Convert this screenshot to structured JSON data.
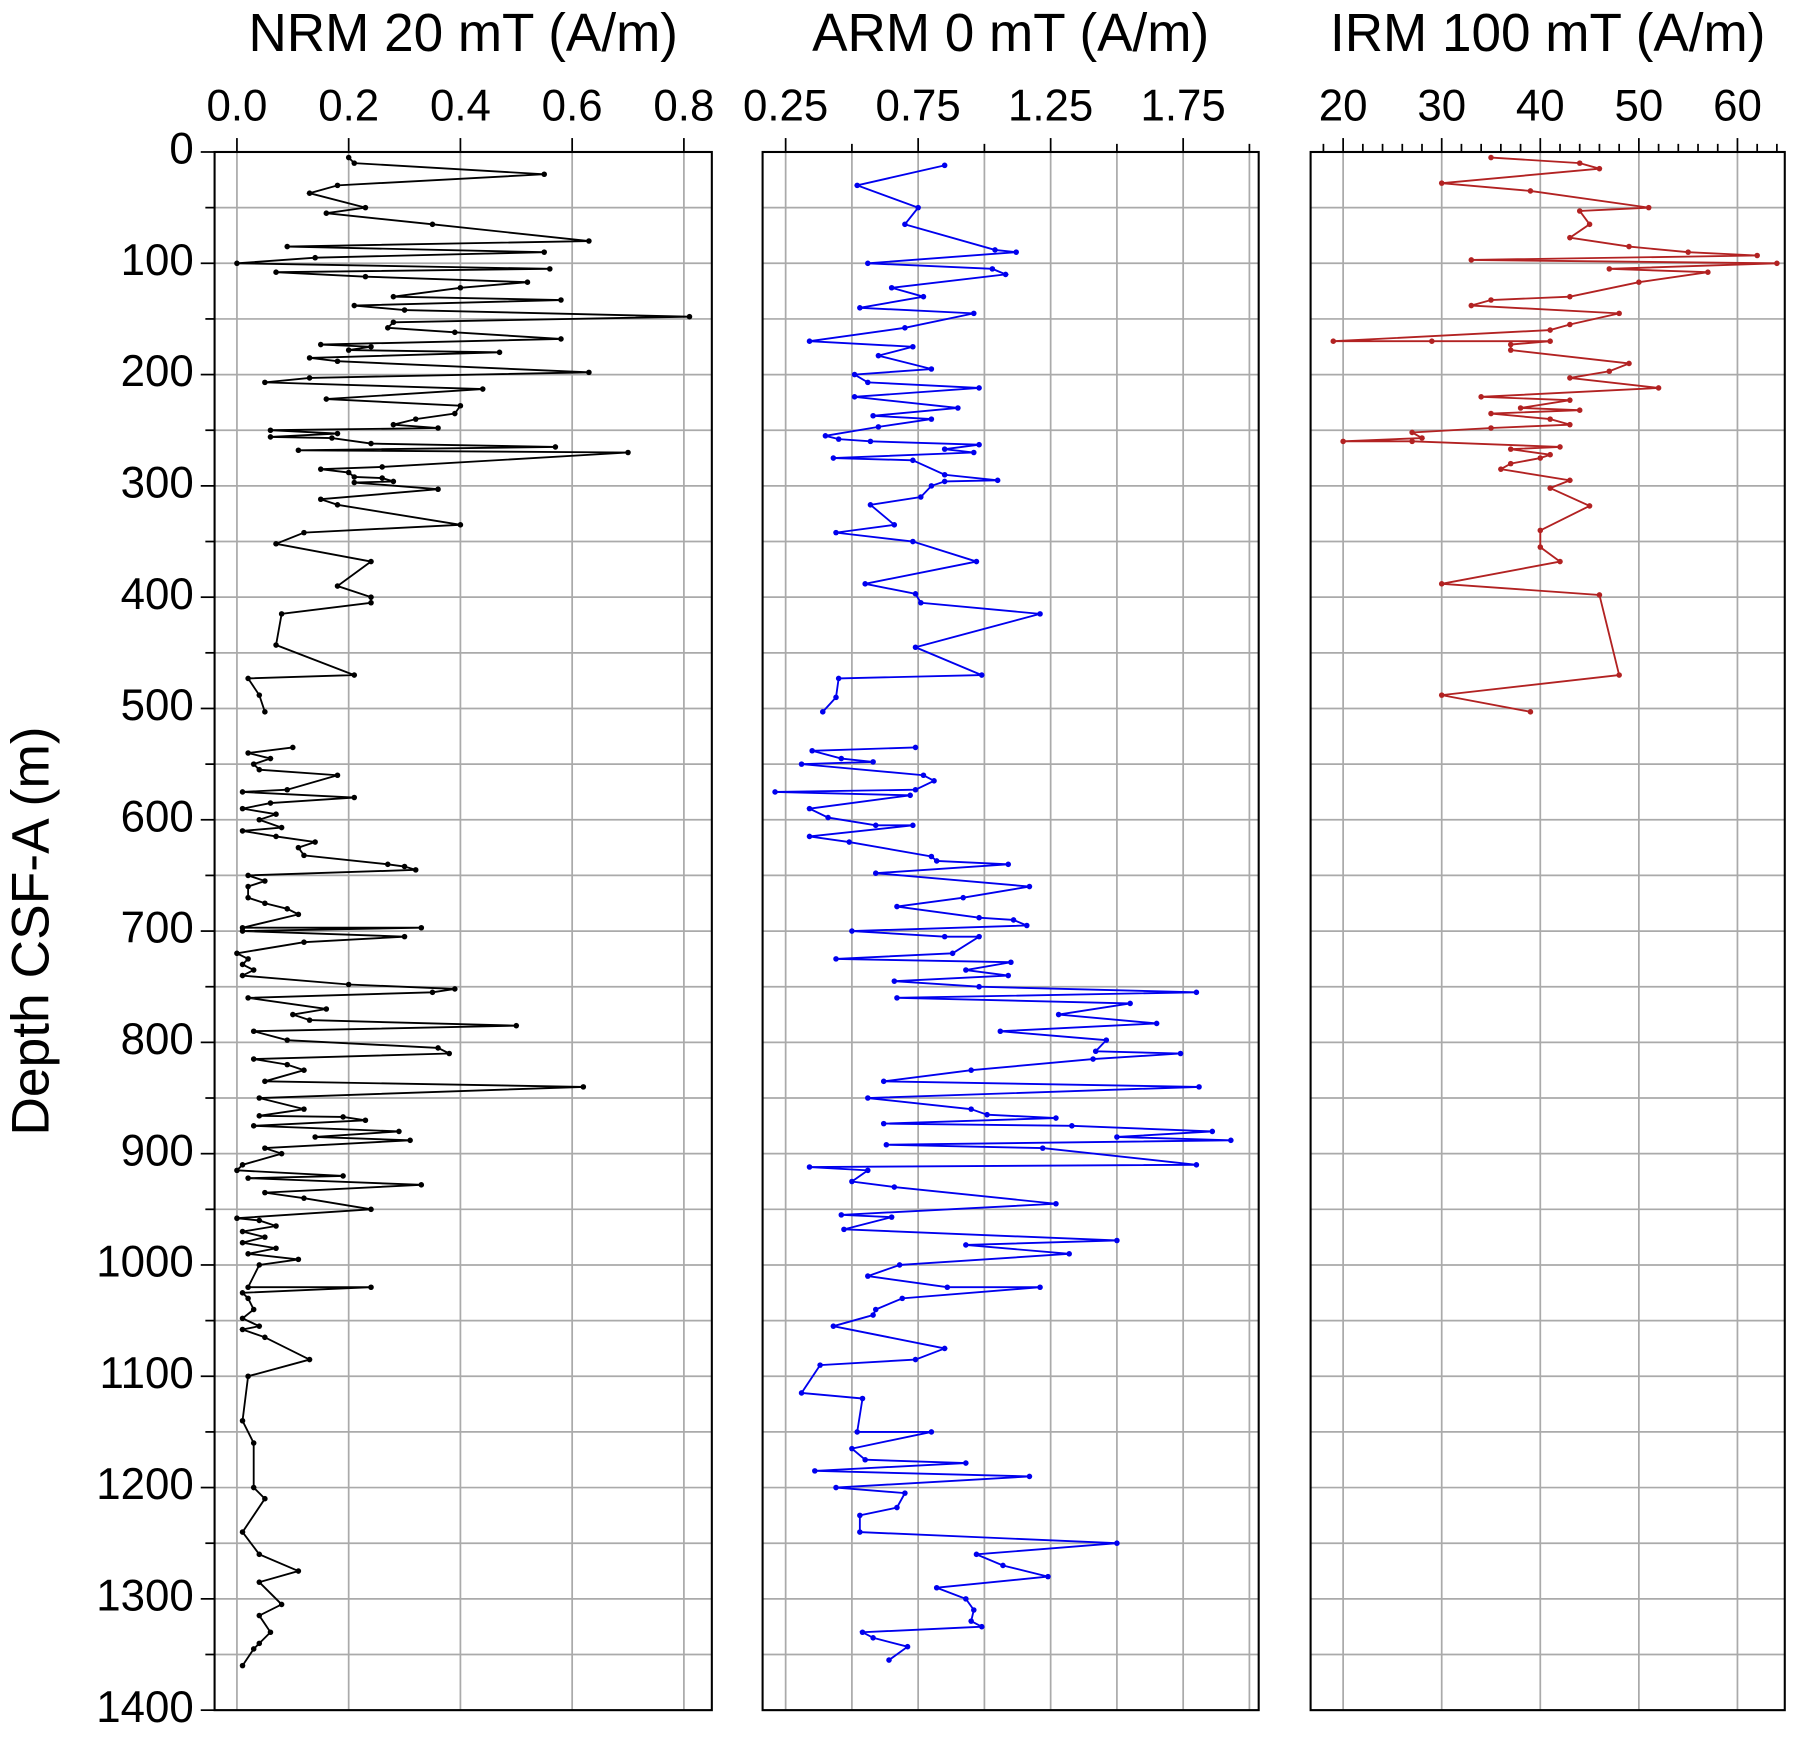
{
  "chart_data": [
    {
      "type": "line",
      "title": "NRM 20 mT (A/m)",
      "ylabel": "Depth CSF-A (m)",
      "color": "#000000",
      "xlim": [
        -0.04,
        0.85
      ],
      "xticks": [
        {
          "value": 0,
          "label": "0.0"
        },
        0.2,
        0.4,
        0.6,
        0.8
      ],
      "ylim": [
        0,
        1400
      ],
      "yticks": [
        0,
        100,
        200,
        300,
        400,
        500,
        600,
        700,
        800,
        900,
        1000,
        1100,
        1200,
        1300,
        1400
      ],
      "yminor": [
        50,
        150,
        250,
        350,
        450,
        550,
        650,
        750,
        850,
        950,
        1050,
        1150,
        1250,
        1350
      ],
      "grid": true,
      "values": [
        0.2,
        0.21,
        0.55,
        0.18,
        0.13,
        0.23,
        0.16,
        0.35,
        0.63,
        0.09,
        0.55,
        0.14,
        0.0,
        0.56,
        0.07,
        0.23,
        0.52,
        0.4,
        0.28,
        0.58,
        0.21,
        0.3,
        0.81,
        0.28,
        0.27,
        0.39,
        0.58,
        0.15,
        0.24,
        0.2,
        0.47,
        0.13,
        0.18,
        0.63,
        0.13,
        0.05,
        0.44,
        0.16,
        0.4,
        0.39,
        0.32,
        0.28,
        0.36,
        0.06,
        0.18,
        0.06,
        0.17,
        0.24,
        0.57,
        0.11,
        0.7,
        0.26,
        0.15,
        0.2,
        0.21,
        0.26,
        0.28,
        0.21,
        0.36,
        0.15,
        0.18,
        0.4,
        0.12,
        0.07,
        0.24,
        0.18,
        0.24,
        0.24,
        0.08,
        0.07,
        0.21,
        0.02,
        0.04,
        0.05,
        null,
        0.1,
        0.02,
        0.06,
        0.03,
        0.04,
        0.18,
        0.09,
        0.01,
        0.21,
        0.06,
        0.01,
        0.07,
        0.04,
        0.08,
        0.01,
        0.07,
        0.14,
        0.11,
        0.12,
        0.27,
        0.3,
        0.32,
        0.02,
        0.05,
        0.02,
        0.02,
        0.05,
        0.09,
        0.11,
        0.01,
        0.33,
        0.01,
        0.3,
        0.12,
        0.0,
        0.02,
        0.01,
        0.03,
        0.01,
        0.2,
        0.39,
        0.35,
        0.02,
        0.16,
        0.1,
        0.13,
        0.5,
        0.03,
        0.09,
        0.36,
        0.38,
        0.03,
        0.09,
        0.12,
        0.05,
        0.62,
        0.04,
        0.12,
        0.04,
        0.19,
        0.23,
        0.03,
        0.29,
        0.14,
        0.31,
        0.05,
        0.08,
        0.01,
        0.0,
        0.19,
        0.02,
        0.33,
        0.05,
        0.12,
        0.24,
        0.0,
        0.04,
        0.07,
        0.01,
        0.05,
        0.01,
        0.07,
        0.02,
        0.11,
        0.04,
        0.02,
        0.24,
        0.01,
        0.02,
        0.03,
        0.01,
        0.04,
        0.01,
        0.05,
        0.13,
        0.02,
        0.01,
        0.03,
        0.03,
        0.05,
        0.01,
        0.04,
        0.11,
        0.04,
        0.08,
        0.04,
        0.06,
        0.04,
        0.03,
        0.01
      ],
      "y": [
        5,
        10,
        20,
        30,
        37,
        50,
        55,
        65,
        80,
        85,
        90,
        95,
        100,
        105,
        108,
        112,
        117,
        122,
        130,
        133,
        138,
        142,
        148,
        153,
        158,
        162,
        168,
        173,
        175,
        178,
        180,
        185,
        188,
        198,
        203,
        207,
        213,
        222,
        228,
        235,
        240,
        245,
        248,
        250,
        253,
        256,
        257,
        262,
        265,
        268,
        270,
        283,
        285,
        288,
        292,
        293,
        296,
        297,
        303,
        312,
        317,
        335,
        342,
        352,
        368,
        390,
        400,
        405,
        415,
        443,
        470,
        473,
        488,
        503,
        null,
        535,
        540,
        545,
        550,
        555,
        560,
        573,
        575,
        580,
        585,
        590,
        595,
        600,
        607,
        610,
        615,
        620,
        625,
        632,
        640,
        642,
        645,
        650,
        655,
        660,
        670,
        675,
        680,
        685,
        697,
        697,
        700,
        705,
        710,
        720,
        725,
        730,
        735,
        740,
        748,
        752,
        755,
        760,
        770,
        775,
        780,
        785,
        790,
        798,
        805,
        810,
        815,
        820,
        825,
        835,
        840,
        850,
        860,
        866,
        867,
        870,
        875,
        880,
        885,
        888,
        895,
        900,
        910,
        915,
        920,
        922,
        928,
        935,
        940,
        950,
        958,
        960,
        965,
        970,
        975,
        980,
        985,
        990,
        995,
        1000,
        1020,
        1020,
        1025,
        1030,
        1040,
        1048,
        1055,
        1058,
        1065,
        1085,
        1100,
        1140,
        1160,
        1200,
        1210,
        1240,
        1260,
        1275,
        1285,
        1305,
        1315,
        1330,
        1340,
        1345,
        1360
      ]
    },
    {
      "type": "line",
      "title": "ARM 0 mT (A/m)",
      "color": "#0000ee",
      "xlim": [
        0.163,
        2.035
      ],
      "xticks": [
        0.25,
        0.75,
        1.25,
        1.75
      ],
      "xminor": [
        0.5,
        1,
        1.5,
        2
      ],
      "ylim": [
        0,
        1400
      ],
      "yticks": [
        0,
        100,
        200,
        300,
        400,
        500,
        600,
        700,
        800,
        900,
        1000,
        1100,
        1200,
        1300,
        1400
      ],
      "yminor": [
        50,
        150,
        250,
        350,
        450,
        550,
        650,
        750,
        850,
        950,
        1050,
        1150,
        1250,
        1350
      ],
      "grid": true,
      "values": [
        0.85,
        0.52,
        0.75,
        0.7,
        1.04,
        1.12,
        0.56,
        1.03,
        1.08,
        0.65,
        0.77,
        0.53,
        0.96,
        0.7,
        0.34,
        0.73,
        0.6,
        0.8,
        0.51,
        0.56,
        0.98,
        0.51,
        0.9,
        0.58,
        0.8,
        0.6,
        0.4,
        0.45,
        0.57,
        0.98,
        0.85,
        0.96,
        0.43,
        0.73,
        0.85,
        1.05,
        0.85,
        0.8,
        0.76,
        0.57,
        0.66,
        0.44,
        0.73,
        0.97,
        0.55,
        0.74,
        0.76,
        1.21,
        0.74,
        0.99,
        0.45,
        0.44,
        0.39,
        null,
        0.74,
        0.35,
        0.46,
        0.58,
        0.31,
        0.77,
        0.81,
        0.74,
        0.21,
        0.72,
        0.34,
        0.41,
        0.59,
        0.73,
        0.34,
        0.49,
        0.8,
        0.82,
        1.09,
        0.59,
        1.17,
        0.92,
        0.67,
        0.98,
        1.11,
        1.16,
        0.5,
        0.85,
        0.98,
        0.88,
        0.44,
        1.1,
        0.93,
        1.09,
        0.66,
        0.98,
        1.8,
        0.67,
        1.55,
        1.28,
        1.65,
        1.06,
        1.46,
        1.42,
        1.74,
        1.41,
        0.95,
        0.62,
        1.81,
        0.56,
        0.95,
        1.01,
        1.27,
        0.62,
        1.33,
        1.86,
        1.5,
        1.93,
        0.63,
        1.22,
        1.8,
        0.34,
        0.56,
        0.5,
        0.66,
        1.27,
        0.46,
        0.65,
        0.47,
        1.5,
        0.93,
        1.32,
        0.68,
        0.56,
        0.86,
        1.21,
        0.69,
        0.59,
        0.58,
        0.43,
        0.85,
        0.74,
        0.38,
        0.31,
        0.54,
        0.52,
        0.8,
        0.5,
        0.55,
        0.93,
        0.36,
        1.17,
        0.44,
        0.7,
        0.67,
        0.53,
        0.53,
        1.5,
        0.97,
        1.07,
        1.24,
        0.82,
        0.93,
        0.96,
        0.95,
        0.99,
        0.54,
        0.58,
        0.71,
        0.64
      ],
      "y": [
        12,
        30,
        50,
        65,
        88,
        90,
        100,
        105,
        110,
        122,
        130,
        140,
        145,
        158,
        170,
        175,
        183,
        195,
        200,
        207,
        212,
        220,
        230,
        237,
        240,
        247,
        255,
        258,
        260,
        263,
        267,
        270,
        275,
        277,
        290,
        295,
        296,
        300,
        310,
        317,
        335,
        342,
        350,
        368,
        388,
        397,
        405,
        415,
        445,
        470,
        473,
        490,
        503,
        null,
        535,
        538,
        545,
        548,
        550,
        560,
        565,
        573,
        575,
        578,
        590,
        598,
        605,
        605,
        615,
        620,
        633,
        637,
        640,
        648,
        660,
        670,
        678,
        688,
        690,
        695,
        700,
        705,
        705,
        720,
        725,
        728,
        735,
        740,
        745,
        750,
        755,
        760,
        765,
        775,
        783,
        790,
        798,
        808,
        810,
        815,
        825,
        835,
        840,
        850,
        860,
        865,
        868,
        873,
        875,
        880,
        885,
        888,
        892,
        895,
        910,
        912,
        915,
        925,
        930,
        945,
        955,
        957,
        968,
        978,
        982,
        990,
        1000,
        1010,
        1020,
        1020,
        1030,
        1040,
        1045,
        1055,
        1075,
        1085,
        1090,
        1115,
        1120,
        1150,
        1150,
        1165,
        1175,
        1178,
        1185,
        1190,
        1200,
        1205,
        1218,
        1225,
        1240,
        1250,
        1260,
        1270,
        1280,
        1290,
        1300,
        1310,
        1320,
        1325,
        1330,
        1335,
        1343,
        1355
      ]
    },
    {
      "type": "line",
      "title": "IRM 100 mT (A/m)",
      "color": "#b22222",
      "xlim": [
        16.7,
        64.8
      ],
      "xticks": [
        20,
        30,
        40,
        50,
        60
      ],
      "xminor": [
        18,
        22,
        24,
        26,
        28,
        32,
        34,
        36,
        38,
        42,
        44,
        46,
        48,
        52,
        54,
        56,
        58,
        62,
        64
      ],
      "ylim": [
        0,
        1400
      ],
      "yticks": [
        0,
        100,
        200,
        300,
        400,
        500,
        600,
        700,
        800,
        900,
        1000,
        1100,
        1200,
        1300,
        1400
      ],
      "yminor": [
        50,
        150,
        250,
        350,
        450,
        550,
        650,
        750,
        850,
        950,
        1050,
        1150,
        1250,
        1350
      ],
      "grid": true,
      "values": [
        35,
        44,
        46,
        30,
        39,
        51,
        44,
        45,
        43,
        49,
        55,
        62,
        33,
        64,
        47,
        57,
        50,
        43,
        35,
        33,
        48,
        43,
        41,
        19,
        29,
        41,
        37,
        37,
        49,
        47,
        43,
        52,
        34,
        43,
        38,
        44,
        35,
        41,
        43,
        35,
        27,
        28,
        20,
        27,
        42,
        37,
        41,
        40,
        37,
        36,
        43,
        41,
        45,
        40,
        40,
        42,
        30,
        46,
        48,
        30,
        39
      ],
      "y": [
        5,
        10,
        15,
        28,
        35,
        50,
        53,
        65,
        77,
        85,
        90,
        93,
        97,
        100,
        105,
        108,
        117,
        130,
        133,
        138,
        145,
        155,
        160,
        170,
        170,
        170,
        173,
        178,
        190,
        197,
        203,
        212,
        220,
        223,
        230,
        232,
        235,
        240,
        245,
        248,
        252,
        257,
        260,
        260,
        265,
        267,
        272,
        275,
        280,
        285,
        295,
        302,
        318,
        340,
        355,
        368,
        388,
        398,
        470,
        488,
        503
      ]
    }
  ]
}
